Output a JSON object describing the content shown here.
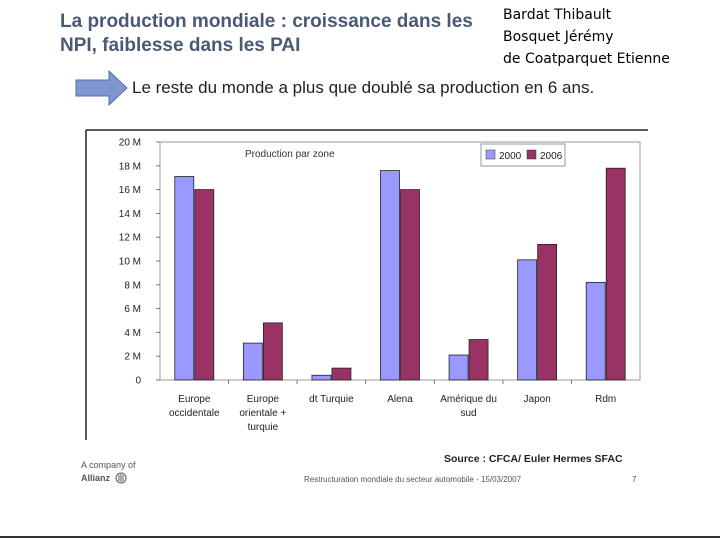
{
  "slide": {
    "title": "La production mondiale : croissance dans les NPI, faiblesse dans les PAI",
    "authors": [
      "Bardat Thibault",
      "Bosquet Jérémy",
      "de Coatparquet Etienne"
    ],
    "subtitle": "Le reste du monde a plus que doublé sa production en 6 ans.",
    "arrow_color": "#7f96d0"
  },
  "chart_data": {
    "type": "bar",
    "title": "Production par zone",
    "categories": [
      [
        "Europe",
        "occidentale"
      ],
      [
        "Europe",
        "orientale +",
        "turquie"
      ],
      [
        "dt Turquie"
      ],
      [
        "Alena"
      ],
      [
        "Amérique du",
        "sud"
      ],
      [
        "Japon"
      ],
      [
        "Rdm"
      ]
    ],
    "series": [
      {
        "name": "2000",
        "color": "#9999ff",
        "values": [
          17.1,
          3.1,
          0.4,
          17.6,
          2.1,
          10.1,
          8.2
        ]
      },
      {
        "name": "2006",
        "color": "#993366",
        "values": [
          16.0,
          4.8,
          1.0,
          16.0,
          3.4,
          11.4,
          17.8
        ]
      }
    ],
    "ylim": [
      0,
      20
    ],
    "yticks": [
      "0",
      "2 M",
      "4 M",
      "6 M",
      "8 M",
      "10 M",
      "12 M",
      "14 M",
      "16 M",
      "18 M",
      "20 M"
    ],
    "grid": false,
    "legend": "top-right",
    "source": "Source : CFCA/ Euler Hermes SFAC"
  },
  "footer": {
    "company_line1": "A company of",
    "company_line2": "Allianz",
    "caption": "Restructuration mondiale du secteur automobile - 15/03/2007",
    "page": "7"
  }
}
